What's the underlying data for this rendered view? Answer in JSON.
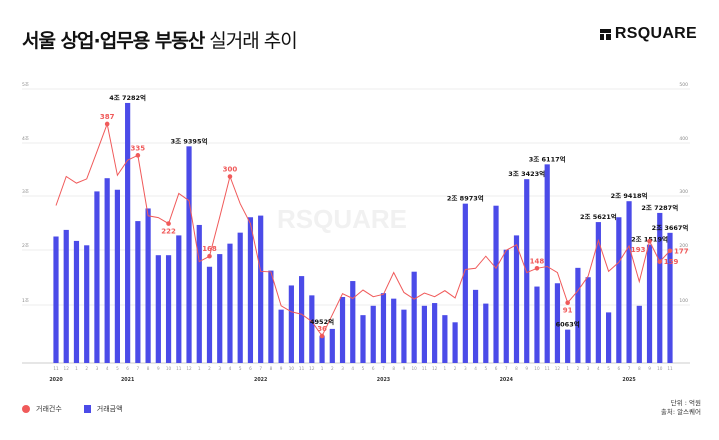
{
  "header": {
    "title_bold": "서울 상업·업무용 부동산",
    "title_light": "실거래 추이",
    "logo_text": "RSQUARE"
  },
  "watermark": "RSQUARE",
  "legend": {
    "count_label": "거래건수",
    "amount_label": "거래금액"
  },
  "notes": {
    "unit": "단위 : 억원",
    "source": "출처: 알스퀘어"
  },
  "colors": {
    "bar": "#4b4be8",
    "line": "#f05a5a",
    "grid": "#e6e6e6"
  },
  "chart_data": {
    "type": "bar+line",
    "title": "서울 상업·업무용 부동산 실거래 추이",
    "grid": true,
    "legend_position": "bottom-left",
    "left_axis": {
      "ticks": [
        "5조",
        "4조",
        "3조",
        "2조",
        "1조"
      ],
      "range_jo": [
        0,
        5
      ]
    },
    "right_axis": {
      "ticks": [
        "500",
        "400",
        "300",
        "200",
        "100"
      ],
      "range": [
        0,
        500
      ]
    },
    "months": [
      "11",
      "12",
      "1",
      "2",
      "3",
      "4",
      "5",
      "6",
      "7",
      "8",
      "9",
      "10",
      "11",
      "12",
      "1",
      "2",
      "3",
      "4",
      "5",
      "6",
      "7",
      "8",
      "9",
      "10",
      "11",
      "12",
      "1",
      "2",
      "3",
      "4",
      "5",
      "6",
      "7",
      "8",
      "9",
      "10",
      "11",
      "12",
      "1",
      "2",
      "3",
      "4",
      "5",
      "6",
      "7",
      "8",
      "9",
      "10",
      "11",
      "12",
      "1",
      "2",
      "3",
      "4",
      "5",
      "6",
      "7",
      "8",
      "9",
      "10",
      "11"
    ],
    "years": [
      {
        "label": "2020",
        "month_index": 0
      },
      {
        "label": "2021",
        "month_index": 7
      },
      {
        "label": "2022",
        "month_index": 20
      },
      {
        "label": "2023",
        "month_index": 32
      },
      {
        "label": "2024",
        "month_index": 44
      },
      {
        "label": "2025",
        "month_index": 56
      }
    ],
    "series": [
      {
        "name": "거래금액",
        "type": "bar",
        "unit": "조원",
        "values": [
          2.3,
          2.42,
          2.22,
          2.14,
          3.12,
          3.36,
          3.15,
          4.7282,
          2.58,
          2.81,
          1.96,
          1.96,
          2.32,
          3.9395,
          2.51,
          1.75,
          1.98,
          2.17,
          2.37,
          2.65,
          2.68,
          1.68,
          0.97,
          1.41,
          1.58,
          1.23,
          0.4952,
          0.62,
          1.2,
          1.49,
          0.87,
          1.04,
          1.27,
          1.17,
          0.97,
          1.66,
          1.04,
          1.09,
          0.87,
          0.74,
          2.8973,
          1.33,
          1.08,
          2.86,
          2.06,
          2.32,
          3.3423,
          1.39,
          3.6117,
          1.45,
          0.6063,
          1.73,
          1.56,
          2.5621,
          0.92,
          2.65,
          2.9418,
          1.04,
          2.1519,
          2.7287,
          2.3667
        ],
        "labels": [
          {
            "i": 7,
            "text": "4조 7282억"
          },
          {
            "i": 13,
            "text": "3조 9395억"
          },
          {
            "i": 26,
            "text": "4952억"
          },
          {
            "i": 40,
            "text": "2조 8973억"
          },
          {
            "i": 46,
            "text": "3조 3423억"
          },
          {
            "i": 48,
            "text": "3조 6117억"
          },
          {
            "i": 50,
            "text": "6063억"
          },
          {
            "i": 53,
            "text": "2조 5621억"
          },
          {
            "i": 56,
            "text": "2조 9418억"
          },
          {
            "i": 58,
            "text": "2조 1519억"
          },
          {
            "i": 59,
            "text": "2조 7287억"
          },
          {
            "i": 60,
            "text": "2조 3667억"
          }
        ]
      },
      {
        "name": "거래건수",
        "type": "line",
        "unit": "건",
        "values": [
          252,
          300,
          289,
          296,
          341,
          387,
          302,
          327,
          335,
          235,
          232,
          222,
          272,
          260,
          159,
          168,
          233,
          300,
          255,
          222,
          143,
          142,
          86,
          76,
          72,
          60,
          36,
          71,
          106,
          98,
          112,
          101,
          105,
          141,
          108,
          97,
          107,
          101,
          111,
          99,
          146,
          148,
          168,
          148,
          178,
          187,
          141,
          148,
          151,
          141,
          91,
          111,
          135,
          194,
          143,
          158,
          185,
          126,
          193,
          159,
          177
        ],
        "labels": [
          {
            "i": 5,
            "text": "387",
            "pos": "above"
          },
          {
            "i": 8,
            "text": "335",
            "pos": "above"
          },
          {
            "i": 11,
            "text": "222",
            "pos": "below"
          },
          {
            "i": 15,
            "text": "168",
            "pos": "above"
          },
          {
            "i": 17,
            "text": "300",
            "pos": "above"
          },
          {
            "i": 26,
            "text": "36",
            "pos": "above"
          },
          {
            "i": 47,
            "text": "148",
            "pos": "above"
          },
          {
            "i": 50,
            "text": "91",
            "pos": "below"
          },
          {
            "i": 58,
            "text": "193",
            "pos": "above"
          },
          {
            "i": 59,
            "text": "159",
            "pos": "right"
          },
          {
            "i": 60,
            "text": "177",
            "pos": "right"
          }
        ]
      }
    ]
  }
}
